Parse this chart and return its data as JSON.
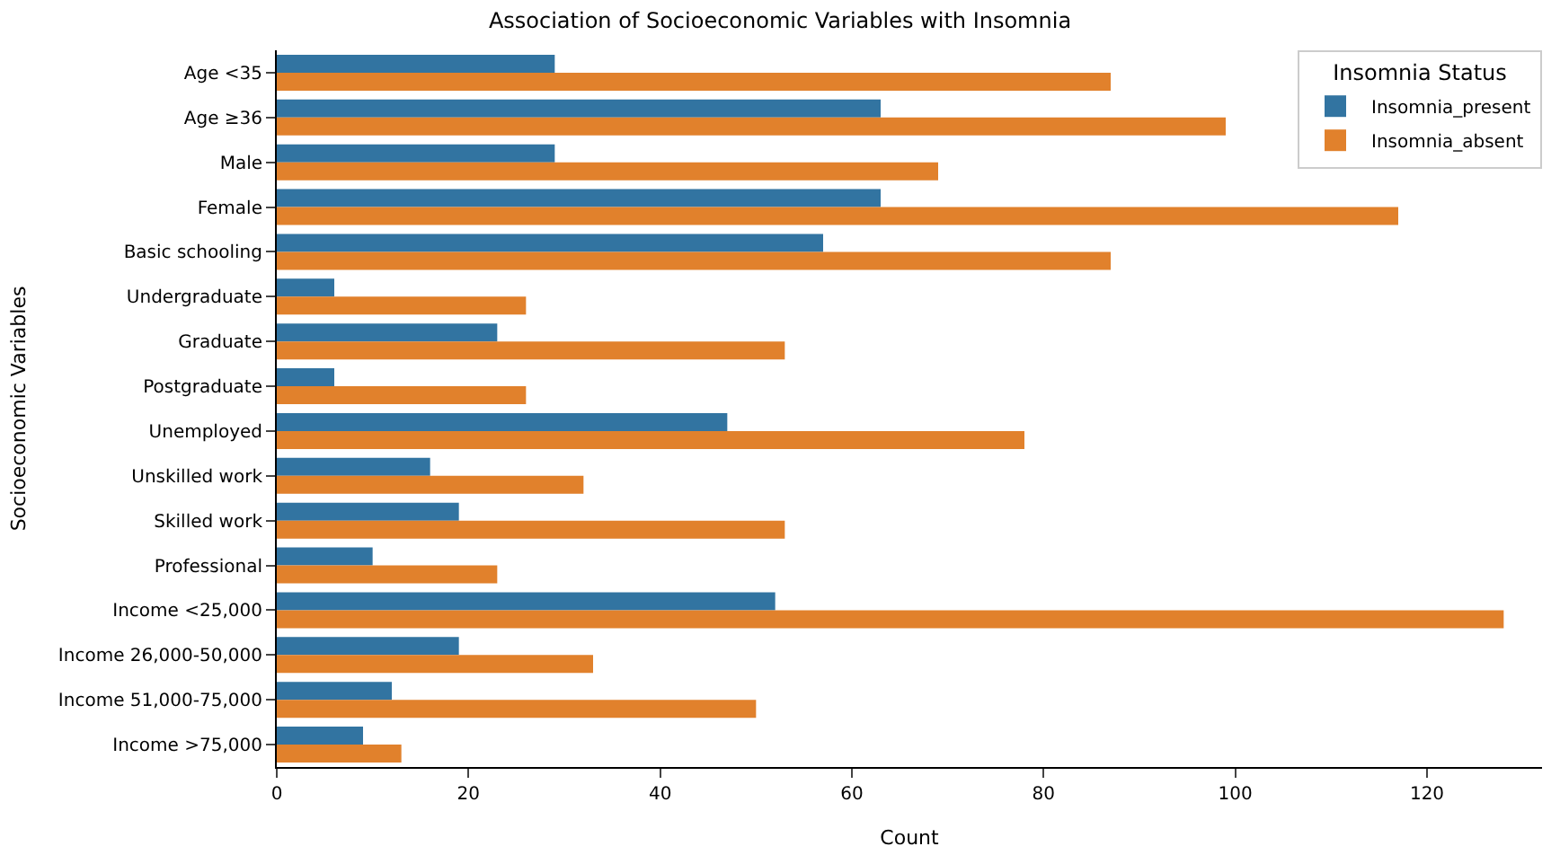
{
  "chart_data": {
    "type": "bar",
    "orientation": "horizontal",
    "title": "Association of Socioeconomic Variables with Insomnia",
    "xlabel": "Count",
    "ylabel": "Socioeconomic Variables",
    "legend_title": "Insomnia Status",
    "legend": "top right",
    "categories": [
      "Age <35",
      "Age ≥36",
      "Male",
      "Female",
      "Basic schooling",
      "Undergraduate",
      "Graduate",
      "Postgraduate",
      "Unemployed",
      "Unskilled work",
      "Skilled work",
      "Professional",
      "Income <25,000",
      "Income 26,000-50,000",
      "Income 51,000-75,000",
      "Income >75,000"
    ],
    "series": [
      {
        "name": "Insomnia_present",
        "color": "#3274a1",
        "values": [
          29,
          63,
          29,
          63,
          57,
          6,
          23,
          6,
          47,
          16,
          19,
          10,
          52,
          19,
          12,
          9
        ]
      },
      {
        "name": "Insomnia_absent",
        "color": "#e1812c",
        "values": [
          87,
          99,
          69,
          117,
          87,
          26,
          53,
          26,
          78,
          32,
          53,
          23,
          128,
          33,
          50,
          13
        ]
      }
    ],
    "xlim": [
      0,
      132
    ],
    "xticks": [
      0,
      20,
      40,
      60,
      80,
      100,
      120
    ]
  }
}
